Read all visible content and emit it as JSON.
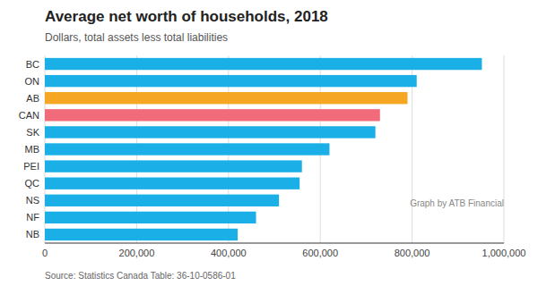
{
  "chart_data": {
    "type": "bar",
    "orientation": "horizontal",
    "title": "Average net worth of households, 2018",
    "subtitle": "Dollars, total assets less total liabilities",
    "source": "Source: Statistics Canada Table: 36-10-0586-01",
    "annotation": "Graph by ATB Financial",
    "categories": [
      "BC",
      "ON",
      "AB",
      "CAN",
      "SK",
      "MB",
      "PEI",
      "QC",
      "NS",
      "NF",
      "NB"
    ],
    "values": [
      952000,
      810000,
      790000,
      730000,
      720000,
      620000,
      560000,
      555000,
      510000,
      460000,
      420000
    ],
    "colors": [
      "#1aafe6",
      "#1aafe6",
      "#f5a623",
      "#f26b7a",
      "#1aafe6",
      "#1aafe6",
      "#1aafe6",
      "#1aafe6",
      "#1aafe6",
      "#1aafe6",
      "#1aafe6"
    ],
    "xlim": [
      0,
      1000000
    ],
    "xticks": [
      0,
      {
        "value": 200000,
        "label": "200,000"
      },
      {
        "value": 400000,
        "label": "400,000"
      },
      {
        "value": 600000,
        "label": "600,000"
      },
      {
        "value": 800000,
        "label": "800,000"
      },
      {
        "value": 1000000,
        "label": "1,000,000"
      }
    ],
    "grid": true
  }
}
